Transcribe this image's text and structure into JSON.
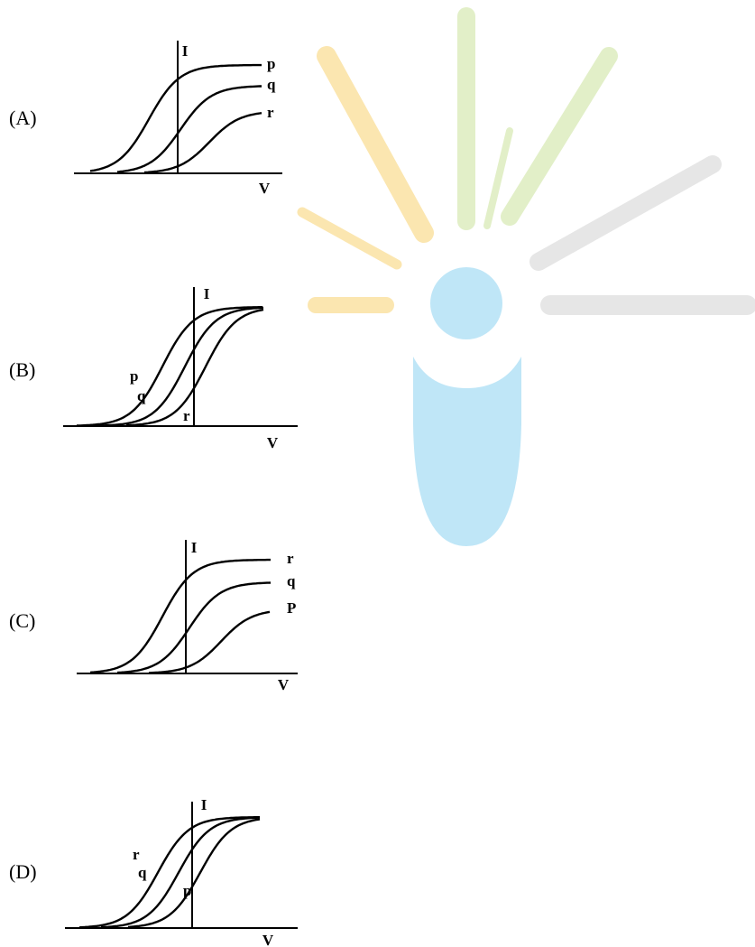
{
  "options": [
    {
      "label": "(A)",
      "y_axis": "I",
      "x_axis": "V",
      "curves": [
        "p",
        "q",
        "r"
      ]
    },
    {
      "label": "(B)",
      "y_axis": "I",
      "x_axis": "V",
      "curves": [
        "p",
        "q",
        "r"
      ]
    },
    {
      "label": "(C)",
      "y_axis": "I",
      "x_axis": "V",
      "curves": [
        "r",
        "q",
        "P"
      ]
    },
    {
      "label": "(D)",
      "y_axis": "I",
      "x_axis": "V",
      "curves": [
        "r",
        "q",
        "p"
      ]
    }
  ]
}
